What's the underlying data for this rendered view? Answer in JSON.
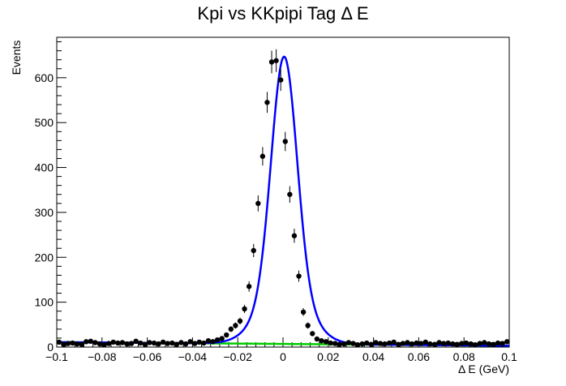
{
  "chart_data": {
    "type": "scatter",
    "title": "Kpi vs KKpipi Tag Δ E",
    "xlabel": "Δ E (GeV)",
    "ylabel": "Events",
    "xlim": [
      -0.1,
      0.1
    ],
    "ylim": [
      0,
      690
    ],
    "x_ticks": [
      -0.1,
      -0.08,
      -0.06,
      -0.04,
      -0.02,
      0,
      0.02,
      0.04,
      0.06,
      0.08,
      0.1
    ],
    "x_tick_labels": [
      "−0.1",
      "−0.08",
      "−0.06",
      "−0.04",
      "−0.02",
      "0",
      "0.02",
      "0.04",
      "0.06",
      "0.08",
      "0.1"
    ],
    "y_ticks": [
      0,
      100,
      200,
      300,
      400,
      500,
      600
    ],
    "y_tick_labels": [
      "0",
      "100",
      "200",
      "300",
      "400",
      "500",
      "600"
    ],
    "grid": false,
    "series": [
      {
        "kind": "data-points-with-errors",
        "color": "#000000",
        "x": [
          -0.099,
          -0.097,
          -0.095,
          -0.093,
          -0.091,
          -0.089,
          -0.087,
          -0.085,
          -0.083,
          -0.081,
          -0.079,
          -0.077,
          -0.075,
          -0.073,
          -0.071,
          -0.069,
          -0.067,
          -0.065,
          -0.063,
          -0.061,
          -0.059,
          -0.057,
          -0.055,
          -0.053,
          -0.051,
          -0.049,
          -0.047,
          -0.045,
          -0.043,
          -0.041,
          -0.039,
          -0.037,
          -0.035,
          -0.033,
          -0.031,
          -0.029,
          -0.027,
          -0.025,
          -0.023,
          -0.021,
          -0.019,
          -0.017,
          -0.015,
          -0.013,
          -0.011,
          -0.009,
          -0.007,
          -0.005,
          -0.003,
          -0.001,
          0.001,
          0.003,
          0.005,
          0.007,
          0.009,
          0.011,
          0.013,
          0.015,
          0.017,
          0.019,
          0.021,
          0.023,
          0.025,
          0.027,
          0.029,
          0.031,
          0.033,
          0.035,
          0.037,
          0.039,
          0.041,
          0.043,
          0.045,
          0.047,
          0.049,
          0.051,
          0.053,
          0.055,
          0.057,
          0.059,
          0.061,
          0.063,
          0.065,
          0.067,
          0.069,
          0.071,
          0.073,
          0.075,
          0.077,
          0.079,
          0.081,
          0.083,
          0.085,
          0.087,
          0.089,
          0.091,
          0.093,
          0.095,
          0.097,
          0.099
        ],
        "y": [
          11,
          6,
          8,
          9,
          7,
          6,
          12,
          13,
          10,
          7,
          5,
          8,
          11,
          9,
          10,
          7,
          8,
          13,
          9,
          6,
          10,
          9,
          7,
          11,
          8,
          9,
          6,
          10,
          7,
          12,
          8,
          11,
          9,
          14,
          12,
          16,
          19,
          27,
          40,
          48,
          58,
          85,
          135,
          215,
          320,
          425,
          545,
          635,
          638,
          595,
          458,
          340,
          248,
          158,
          78,
          48,
          30,
          18,
          14,
          12,
          9,
          8,
          6,
          7,
          10,
          8,
          5,
          7,
          9,
          6,
          10,
          8,
          7,
          9,
          11,
          6,
          8,
          10,
          7,
          9,
          8,
          11,
          7,
          6,
          10,
          8,
          9,
          7,
          6,
          8,
          9,
          7,
          5,
          8,
          10,
          7,
          6,
          9,
          8,
          12
        ]
      },
      {
        "kind": "signal-fit",
        "color": "#0000ff",
        "name": ""
      },
      {
        "kind": "background-fit",
        "color": "#00cc00",
        "name": ""
      }
    ]
  }
}
